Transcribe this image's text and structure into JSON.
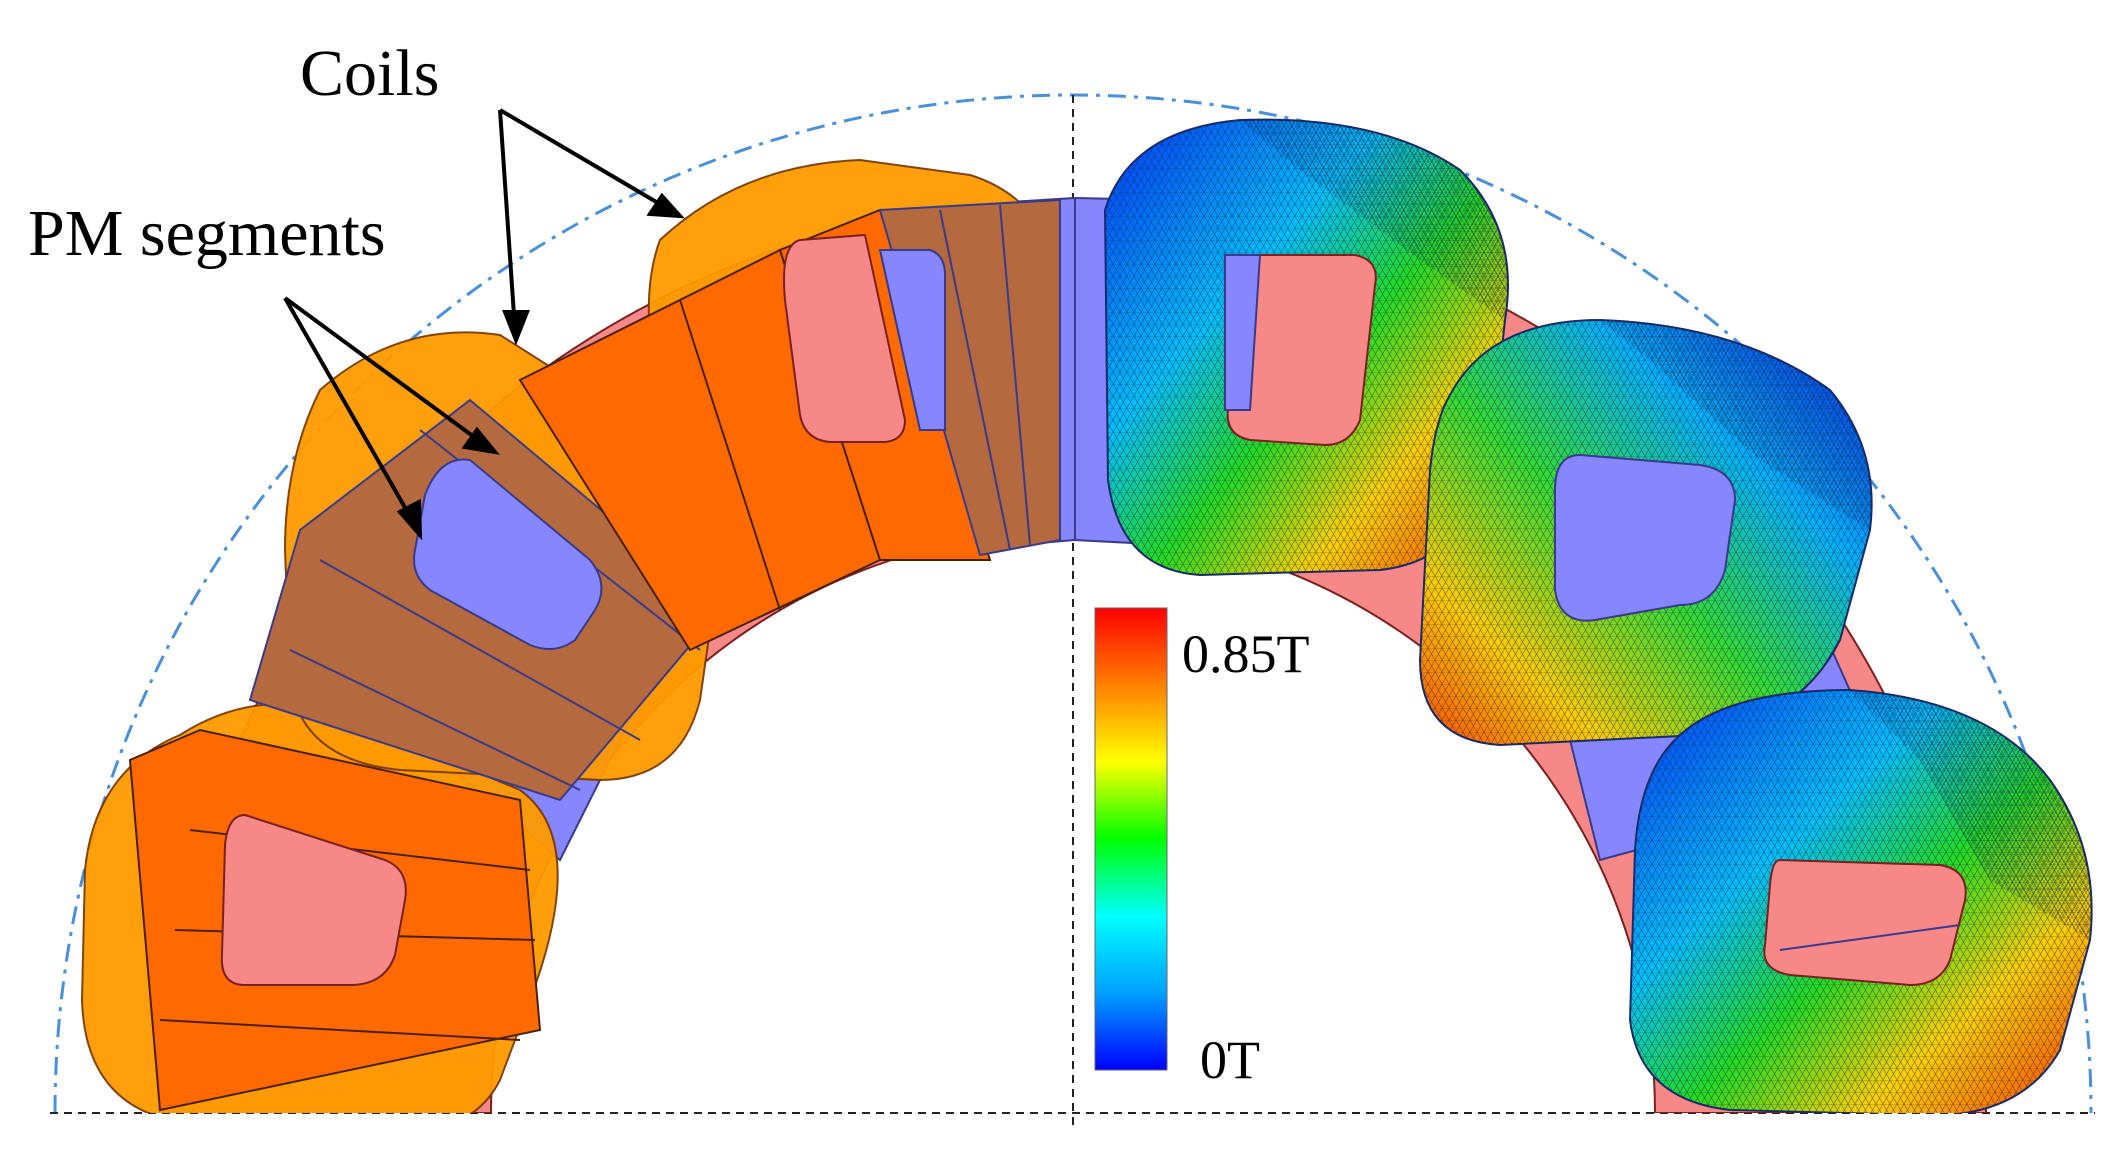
{
  "annotations": {
    "coils": "Coils",
    "pm_segments": "PM segments"
  },
  "colorbar": {
    "max_label": "0.85T",
    "min_label": "0T",
    "max_value": 0.85,
    "min_value": 0,
    "unit": "T",
    "stops": [
      "#0000ff",
      "#00a0ff",
      "#00ffff",
      "#00ff00",
      "#ffff00",
      "#ff8000",
      "#ff0000"
    ]
  },
  "colors": {
    "coil": "#ff9a00",
    "pm_segment": "#ff6a00",
    "pm_segment_overlap": "#b46a3e",
    "core_pink": "#f78888",
    "core_blue": "#8686ff",
    "outline": "#3a3a8a",
    "mesh": "#223344",
    "boundary": "#4a90d9"
  }
}
